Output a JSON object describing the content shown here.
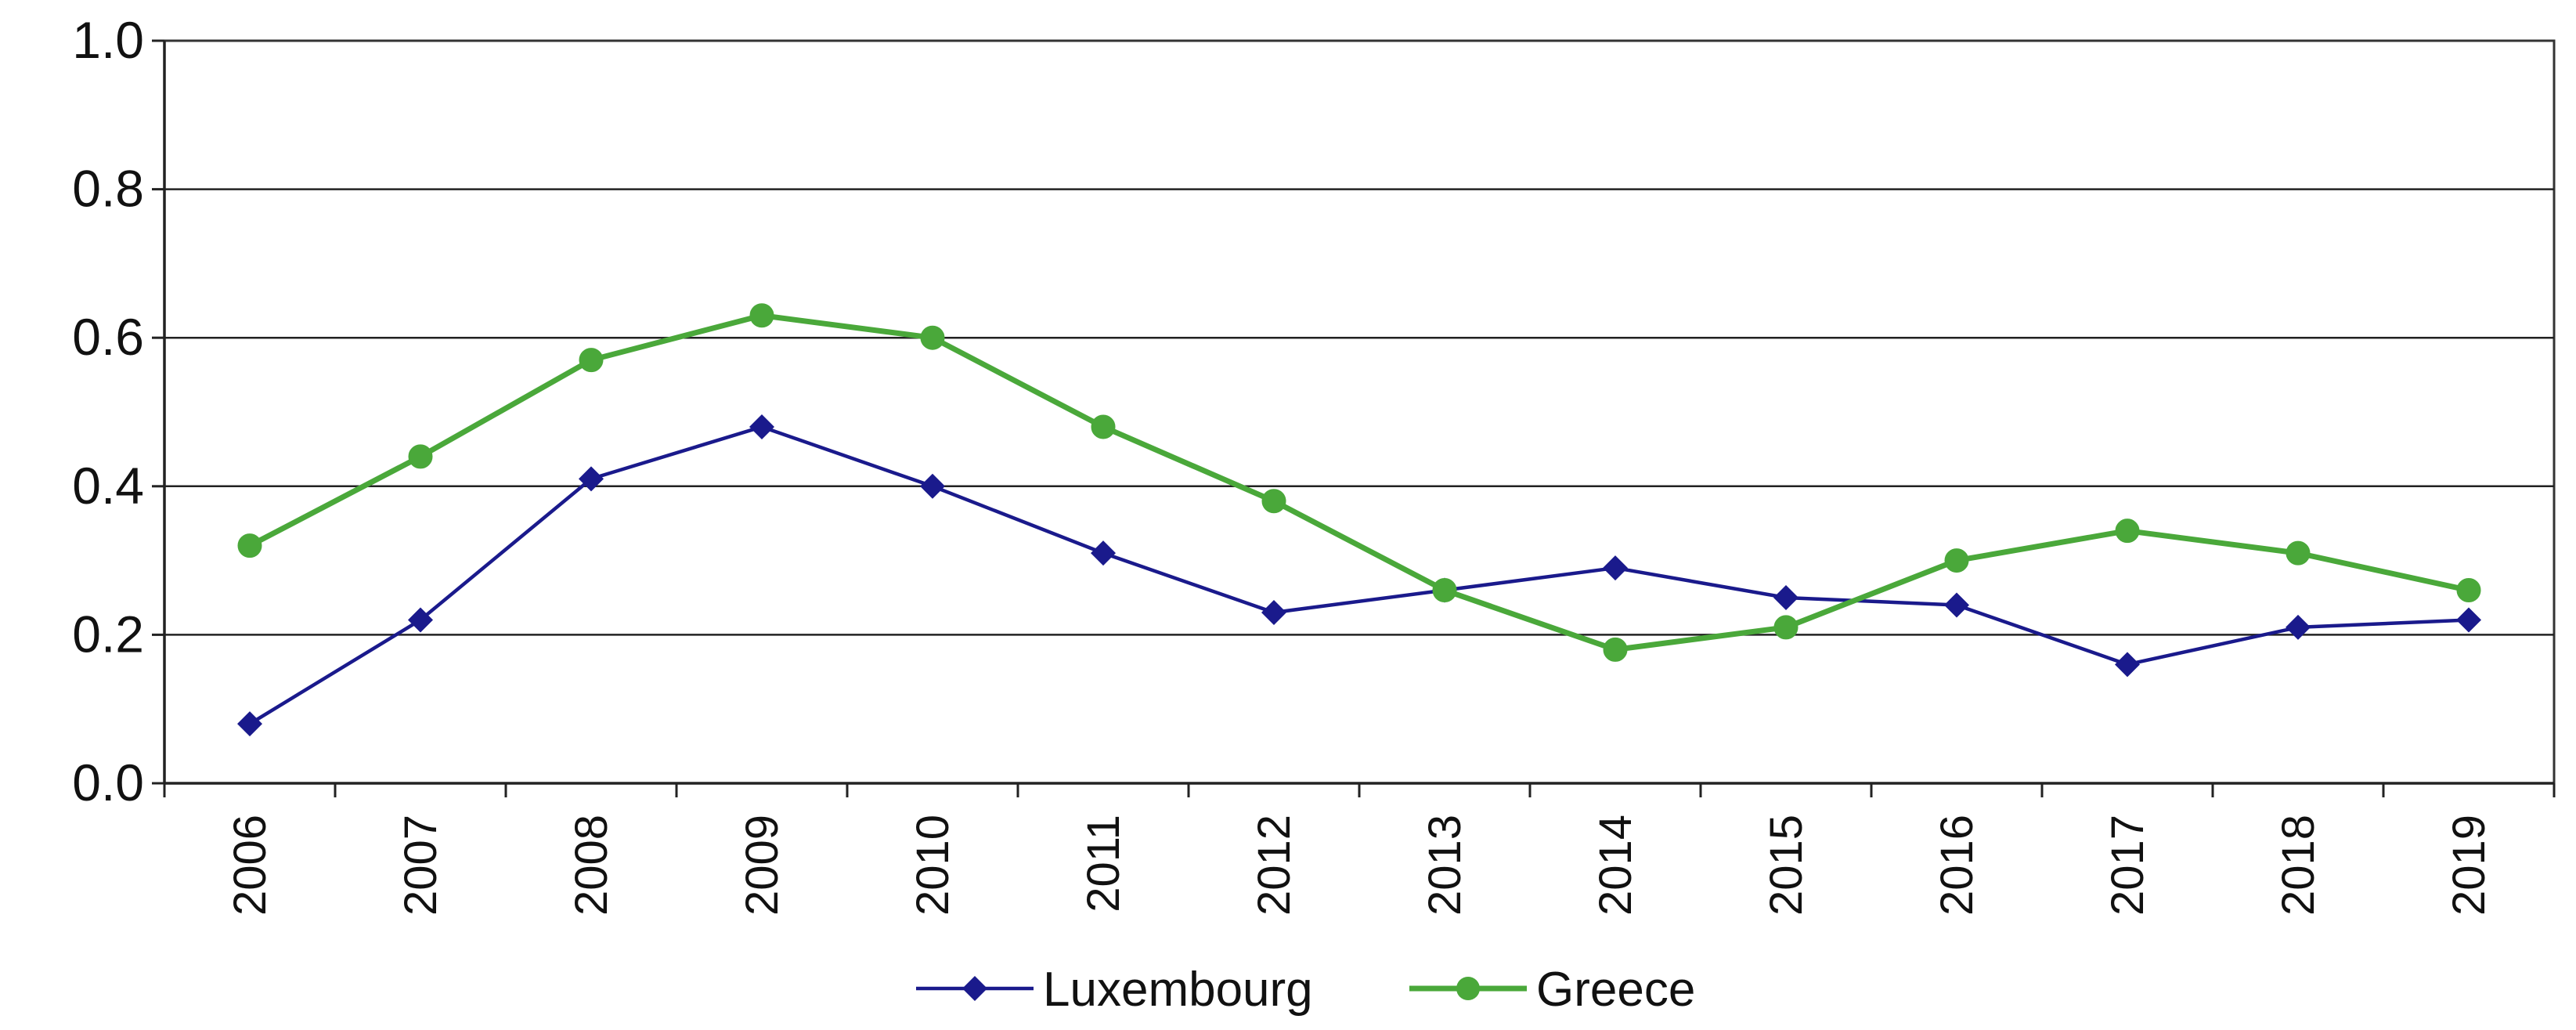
{
  "chart_data": {
    "type": "line",
    "categories": [
      "2006",
      "2007",
      "2008",
      "2009",
      "2010",
      "2011",
      "2012",
      "2013",
      "2014",
      "2015",
      "2016",
      "2017",
      "2018",
      "2019"
    ],
    "y_ticks": [
      "0.0",
      "0.2",
      "0.4",
      "0.6",
      "0.8",
      "1.0"
    ],
    "ylim": [
      0,
      1
    ],
    "grid": "horizontal",
    "legend": "bottom",
    "series": [
      {
        "name": "Luxembourg",
        "color": "#1a1a8c",
        "marker": "diamond",
        "values": [
          0.08,
          0.22,
          0.41,
          0.48,
          0.4,
          0.31,
          0.23,
          0.26,
          0.29,
          0.25,
          0.24,
          0.16,
          0.21,
          0.22
        ]
      },
      {
        "name": "Greece",
        "color": "#4aa83a",
        "marker": "circle",
        "values": [
          0.32,
          0.44,
          0.57,
          0.63,
          0.6,
          0.48,
          0.38,
          0.26,
          0.18,
          0.21,
          0.3,
          0.34,
          0.31,
          0.26
        ]
      }
    ]
  }
}
